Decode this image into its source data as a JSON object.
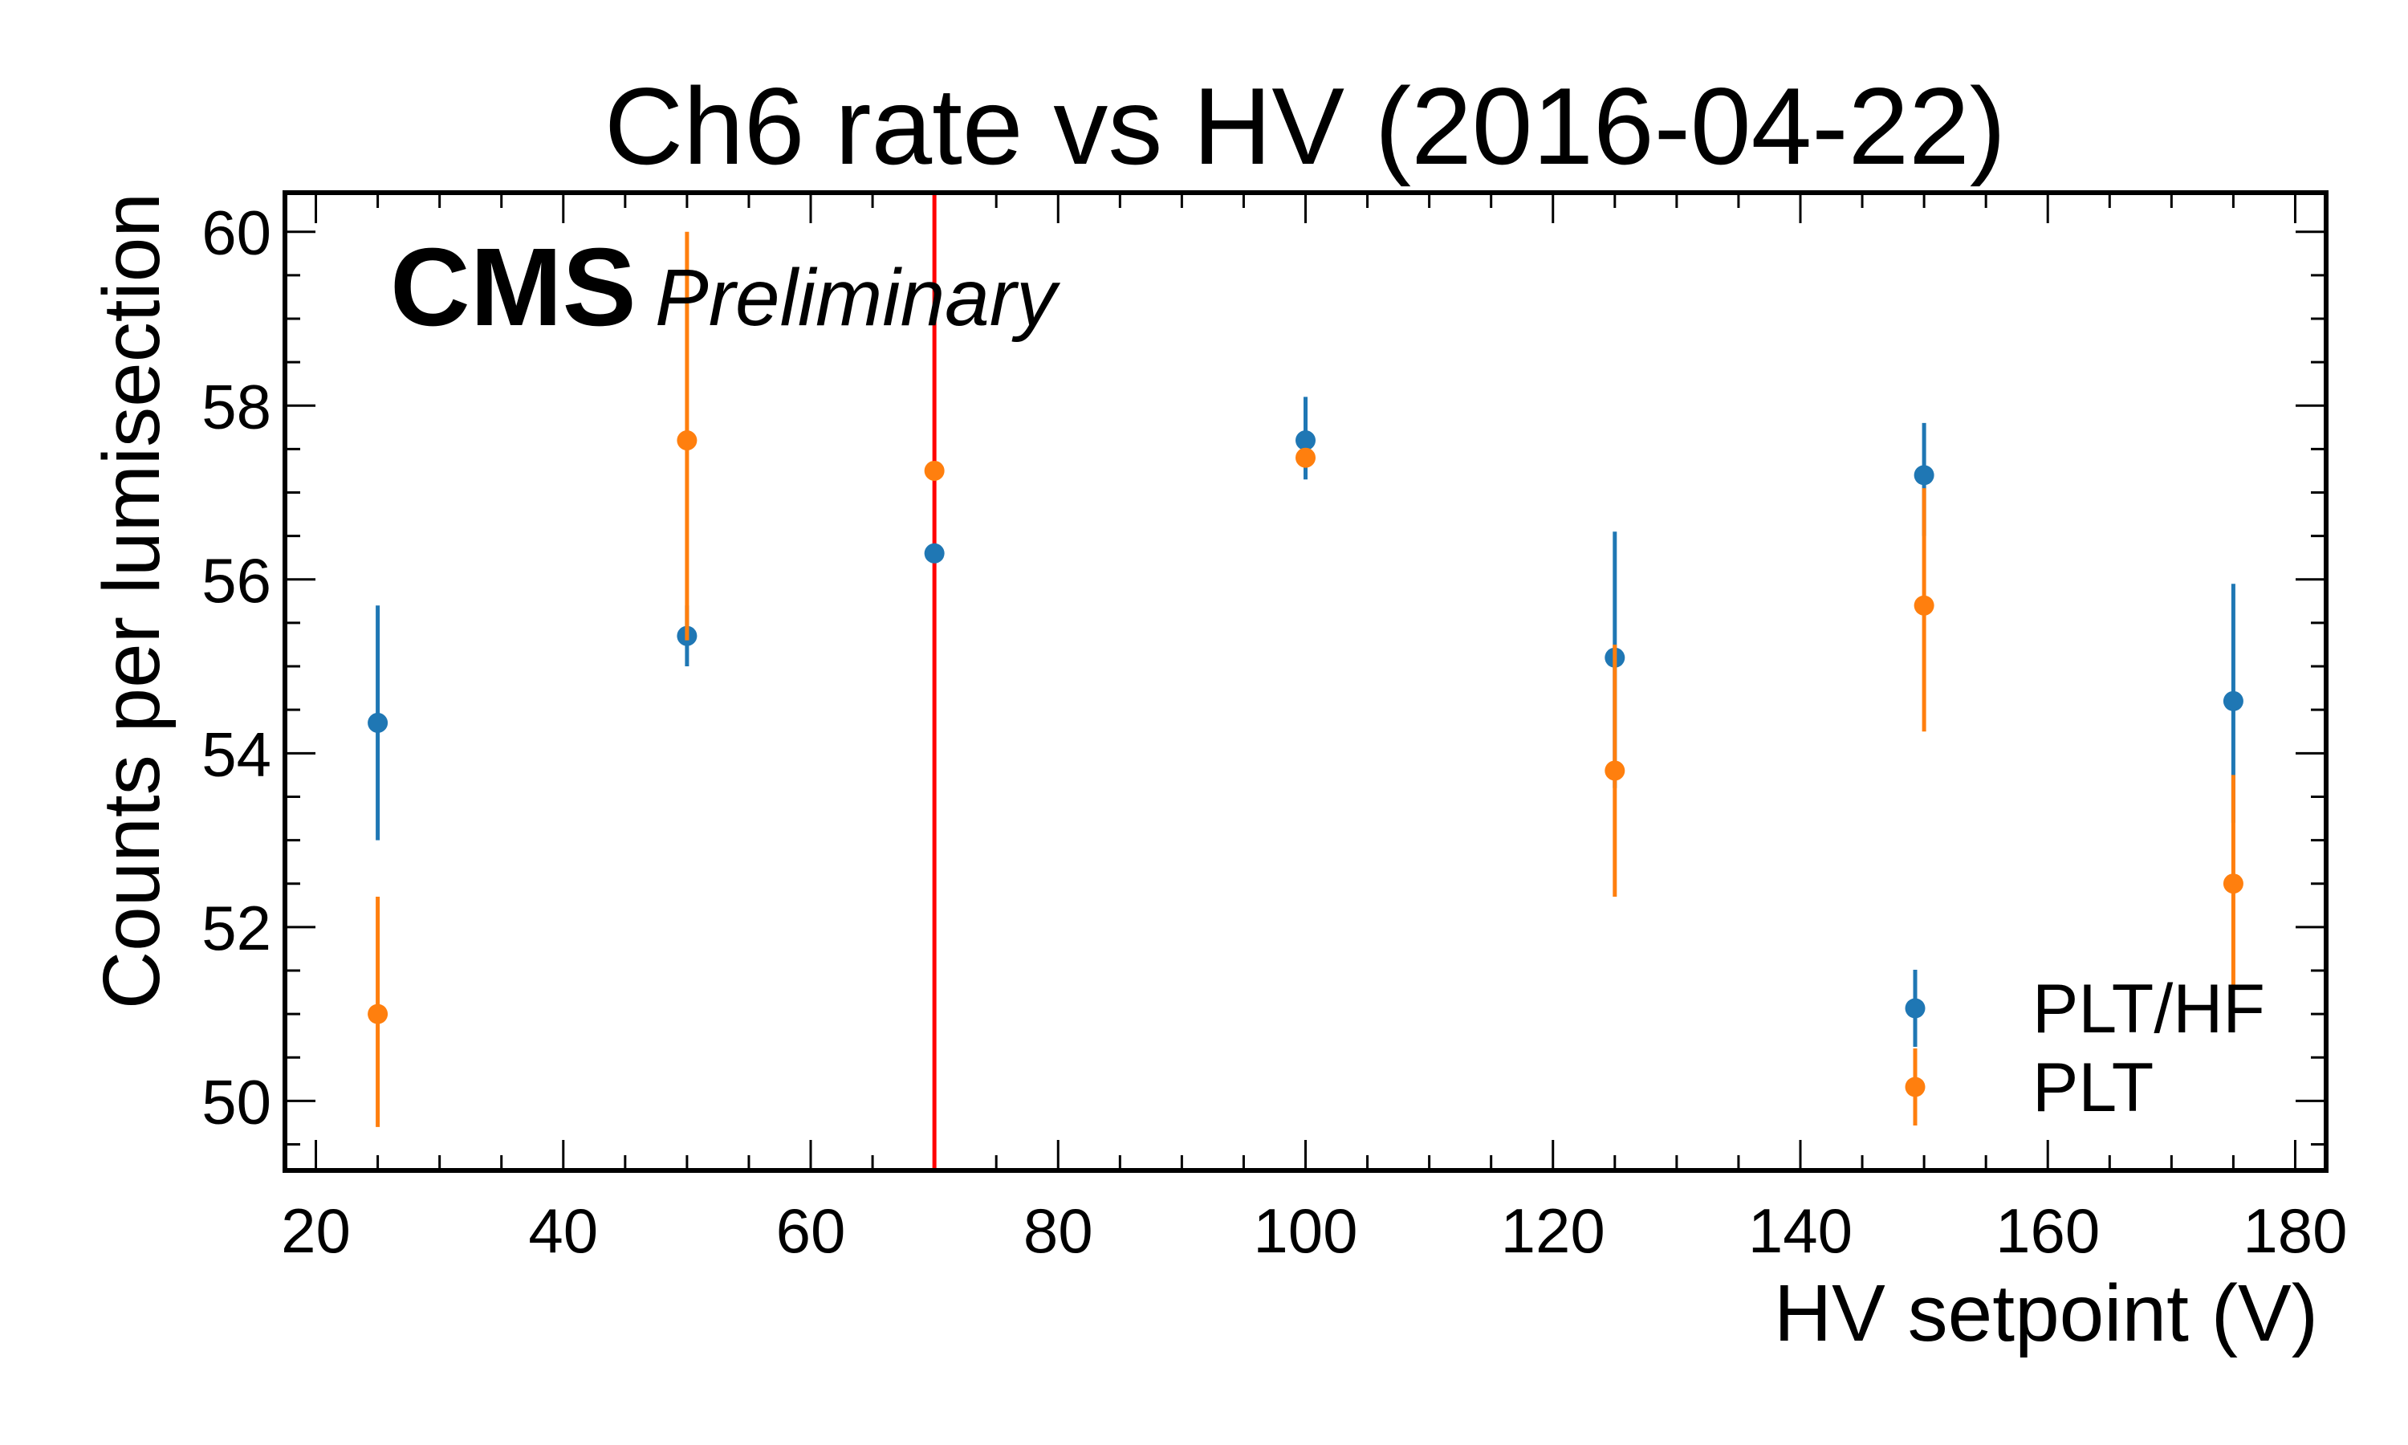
{
  "chart_data": {
    "type": "scatter",
    "title": "Ch6 rate vs HV (2016-04-22)",
    "xlabel": "HV setpoint (V)",
    "ylabel": "Counts per lumisection",
    "xlim": [
      17.5,
      182.5
    ],
    "ylim": [
      49.2,
      60.45
    ],
    "x_ticks": [
      20,
      40,
      60,
      80,
      100,
      120,
      140,
      160,
      180
    ],
    "x_tick_labels": [
      "20",
      "40",
      "60",
      "80",
      "100",
      "120",
      "140",
      "160",
      "180"
    ],
    "y_ticks": [
      50,
      52,
      54,
      56,
      58,
      60
    ],
    "y_tick_labels": [
      "50",
      "52",
      "54",
      "56",
      "58",
      "60"
    ],
    "x_minor_step": 5,
    "y_minor_step": 0.5,
    "grid": false,
    "legend_position": "bottom-right",
    "experiment_label": "CMS",
    "status_label": "Preliminary",
    "series": [
      {
        "name": "PLT/HF",
        "color": "#1f77b4",
        "points": [
          {
            "x": 25,
            "y": 54.35,
            "yerr_low": 53.0,
            "yerr_high": 55.7
          },
          {
            "x": 50,
            "y": 55.35,
            "yerr_low": 55.0,
            "yerr_high": 55.7
          },
          {
            "x": 70,
            "y": 56.3,
            "yerr_low": 56.25,
            "yerr_high": 56.35
          },
          {
            "x": 100,
            "y": 57.6,
            "yerr_low": 57.15,
            "yerr_high": 58.1
          },
          {
            "x": 125,
            "y": 55.1,
            "yerr_low": 53.6,
            "yerr_high": 56.55
          },
          {
            "x": 150,
            "y": 57.2,
            "yerr_low": 56.5,
            "yerr_high": 57.8
          },
          {
            "x": 175,
            "y": 54.6,
            "yerr_low": 53.2,
            "yerr_high": 55.95
          }
        ]
      },
      {
        "name": "PLT",
        "color": "#ff7f0e",
        "points": [
          {
            "x": 25,
            "y": 51.0,
            "yerr_low": 49.7,
            "yerr_high": 52.35
          },
          {
            "x": 50,
            "y": 57.6,
            "yerr_low": 55.3,
            "yerr_high": 60.0
          },
          {
            "x": 70,
            "y": 57.25,
            "yerr_low": 57.2,
            "yerr_high": 57.3
          },
          {
            "x": 100,
            "y": 57.4,
            "yerr_low": 57.3,
            "yerr_high": 57.5
          },
          {
            "x": 125,
            "y": 53.8,
            "yerr_low": 52.35,
            "yerr_high": 55.25
          },
          {
            "x": 150,
            "y": 55.7,
            "yerr_low": 54.25,
            "yerr_high": 57.05
          },
          {
            "x": 175,
            "y": 52.5,
            "yerr_low": 51.3,
            "yerr_high": 53.75
          }
        ]
      }
    ],
    "vertical_lines": [
      {
        "x": 70,
        "color": "#ff0000"
      }
    ]
  }
}
